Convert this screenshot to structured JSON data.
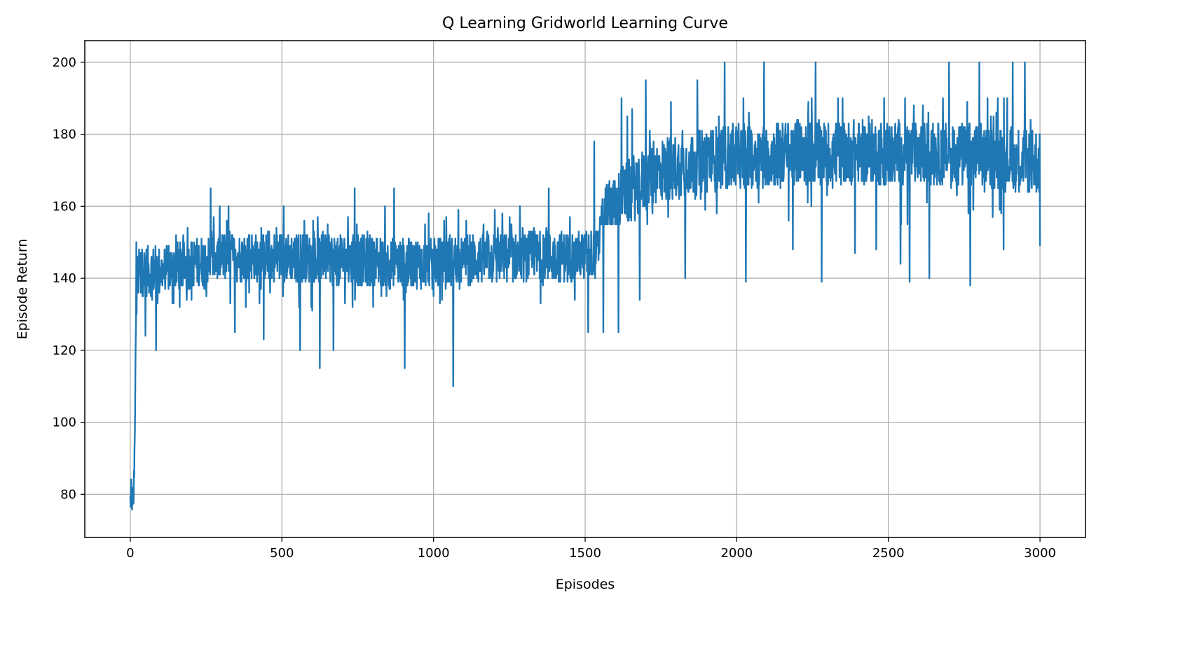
{
  "chart_data": {
    "type": "line",
    "title": "Q Learning Gridworld Learning Curve",
    "xlabel": "Episodes",
    "ylabel": "Episode Return",
    "xlim": [
      -150,
      3150
    ],
    "ylim": [
      68,
      206
    ],
    "xticks": [
      0,
      500,
      1000,
      1500,
      2000,
      2500,
      3000
    ],
    "yticks": [
      80,
      100,
      120,
      140,
      160,
      180,
      200
    ],
    "grid": true,
    "series_color": "#1f77b4",
    "episodes": [
      0,
      3000
    ],
    "profile": [
      [
        0,
        78
      ],
      [
        5,
        80
      ],
      [
        10,
        75
      ],
      [
        14,
        92
      ],
      [
        18,
        120
      ],
      [
        22,
        140
      ],
      [
        30,
        142
      ],
      [
        100,
        142
      ],
      [
        300,
        146
      ],
      [
        500,
        146
      ],
      [
        700,
        145
      ],
      [
        900,
        144
      ],
      [
        1100,
        145
      ],
      [
        1300,
        146
      ],
      [
        1450,
        146
      ],
      [
        1540,
        147
      ],
      [
        1570,
        158
      ],
      [
        1620,
        163
      ],
      [
        1680,
        166
      ],
      [
        1750,
        170
      ],
      [
        1900,
        173
      ],
      [
        2200,
        175
      ],
      [
        2500,
        175
      ],
      [
        2800,
        174
      ],
      [
        3000,
        172
      ]
    ],
    "spread_before_1550": 7,
    "spread_after_1550": 9,
    "spikes": [
      [
        20,
        150
      ],
      [
        50,
        124
      ],
      [
        85,
        120
      ],
      [
        265,
        165
      ],
      [
        345,
        125
      ],
      [
        440,
        123
      ],
      [
        560,
        120
      ],
      [
        625,
        115
      ],
      [
        670,
        120
      ],
      [
        740,
        165
      ],
      [
        870,
        165
      ],
      [
        905,
        115
      ],
      [
        1065,
        110
      ],
      [
        1380,
        165
      ],
      [
        1510,
        125
      ],
      [
        1530,
        178
      ],
      [
        1560,
        125
      ],
      [
        1610,
        125
      ],
      [
        1620,
        190
      ],
      [
        1680,
        134
      ],
      [
        1700,
        195
      ],
      [
        1830,
        140
      ],
      [
        1870,
        195
      ],
      [
        1960,
        200
      ],
      [
        2030,
        139
      ],
      [
        2090,
        200
      ],
      [
        2185,
        148
      ],
      [
        2260,
        200
      ],
      [
        2280,
        139
      ],
      [
        2390,
        147
      ],
      [
        2460,
        148
      ],
      [
        2540,
        144
      ],
      [
        2570,
        139
      ],
      [
        2635,
        140
      ],
      [
        2700,
        200
      ],
      [
        2770,
        138
      ],
      [
        2800,
        200
      ],
      [
        2880,
        148
      ],
      [
        2910,
        200
      ],
      [
        2950,
        200
      ],
      [
        3000,
        149
      ]
    ]
  }
}
